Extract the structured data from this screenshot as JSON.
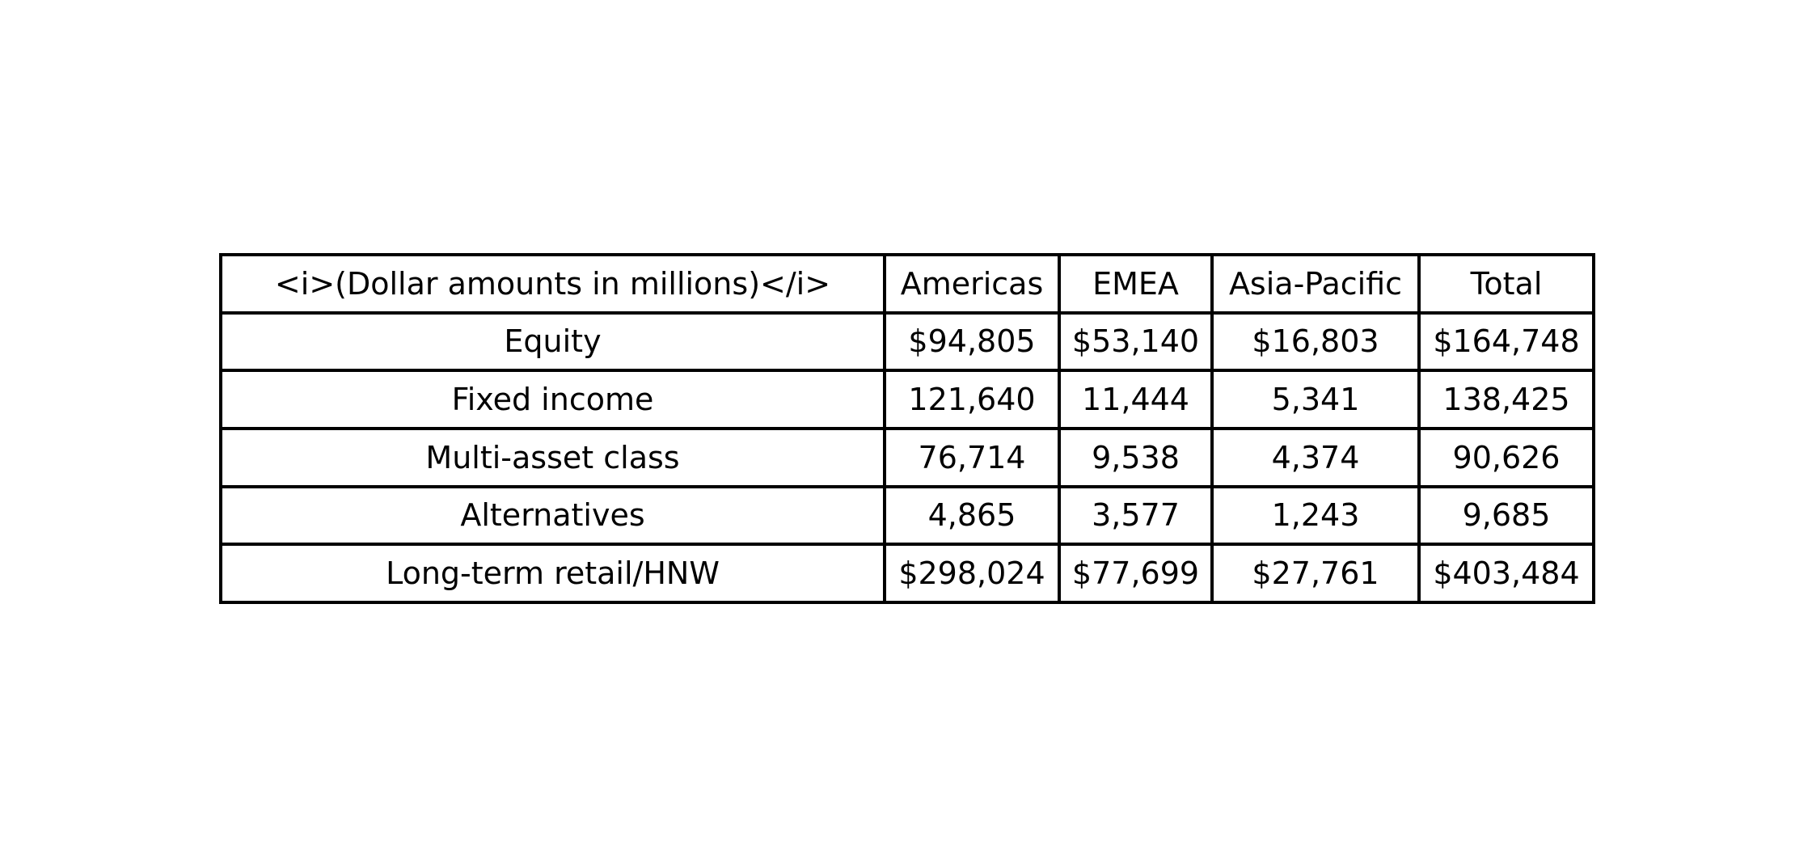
{
  "chart_data": {
    "type": "table",
    "columns": [
      "<i>(Dollar amounts in millions)</i>",
      "Americas",
      "EMEA",
      "Asia-Pacific",
      "Total"
    ],
    "rows": [
      [
        "Equity",
        "$94,805",
        "$53,140",
        "$16,803",
        "$164,748"
      ],
      [
        "Fixed income",
        "121,640",
        "11,444",
        "5,341",
        "138,425"
      ],
      [
        "Multi-asset class",
        "76,714",
        "9,538",
        "4,374",
        "90,626"
      ],
      [
        "Alternatives",
        "4,865",
        "3,577",
        "1,243",
        "9,685"
      ],
      [
        "Long-term retail/HNW",
        "$298,024",
        "$77,699",
        "$27,761",
        "$403,484"
      ]
    ]
  }
}
